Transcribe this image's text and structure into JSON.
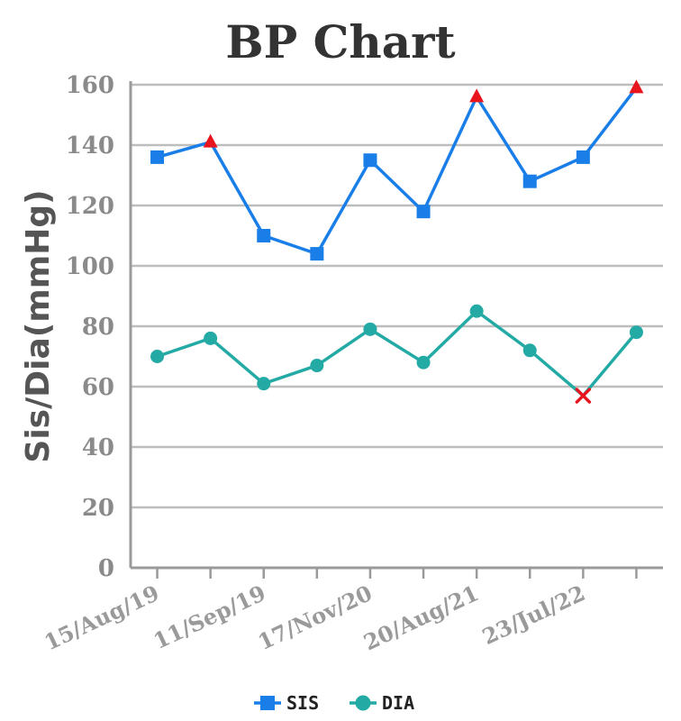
{
  "chart_data": {
    "type": "line",
    "title": "BP Chart",
    "xlabel": "",
    "ylabel": "Sis/Dia(mmHg)",
    "ylim": [
      0,
      160
    ],
    "yticks": [
      0,
      20,
      40,
      60,
      80,
      100,
      120,
      140,
      160
    ],
    "grid": true,
    "legend_position": "bottom",
    "x_tick_labels": [
      "15/Aug/19",
      "11/Sep/19",
      "17/Nov/20",
      "20/Aug/21",
      "23/Jul/22"
    ],
    "x_tick_label_indices": [
      0,
      2,
      4,
      6,
      8
    ],
    "point_count": 10,
    "series": [
      {
        "name": "SIS",
        "color": "#1a7ee8",
        "marker": "square",
        "values": [
          136,
          141,
          110,
          104,
          135,
          118,
          156,
          128,
          136,
          159
        ],
        "alert_indices": [
          1,
          6,
          9
        ],
        "alert_marker": "triangle",
        "alert_color": "#e8141e"
      },
      {
        "name": "DIA",
        "color": "#24aaa4",
        "marker": "circle",
        "values": [
          70,
          76,
          61,
          67,
          79,
          68,
          85,
          72,
          57,
          78
        ],
        "alert_indices": [
          8
        ],
        "alert_marker": "cross",
        "alert_color": "#e8141e"
      }
    ]
  }
}
